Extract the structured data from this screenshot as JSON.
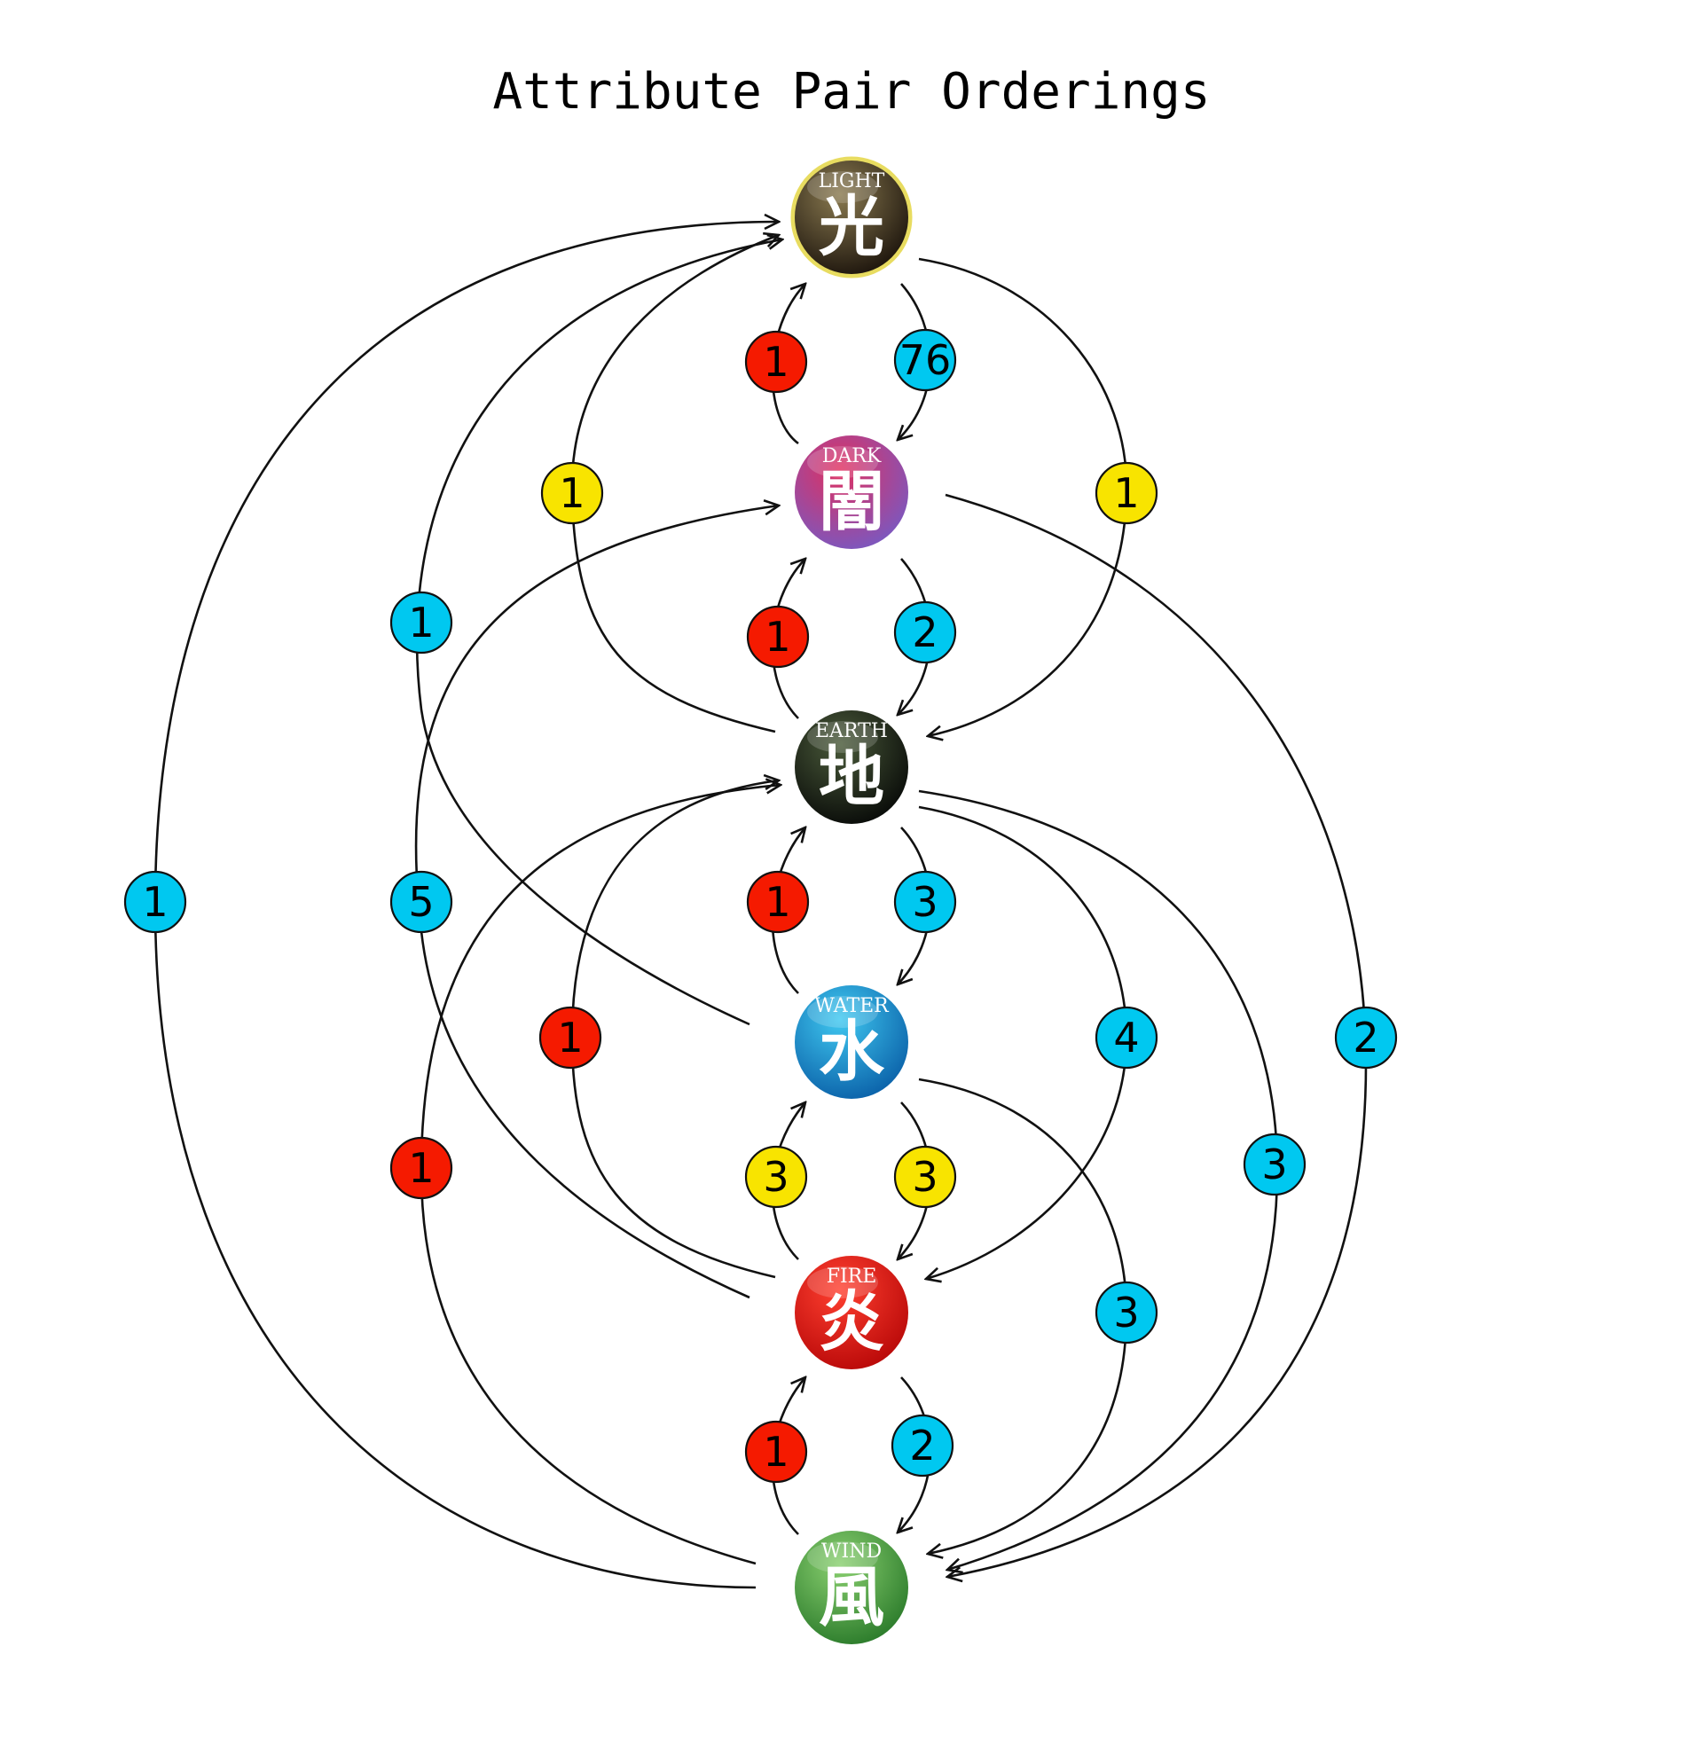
{
  "title": "Attribute Pair Orderings",
  "badge_colors": {
    "red": "#f51a00",
    "blue": "#00c8f0",
    "yellow": "#f8e400"
  },
  "nodes": [
    {
      "id": "light",
      "label": "LIGHT",
      "glyph": "光",
      "color_top": "#8a7a50",
      "color_bottom": "#1c140c",
      "ring": "#e8dc60"
    },
    {
      "id": "dark",
      "label": "DARK",
      "glyph": "闇",
      "color_top": "#e03060",
      "color_bottom": "#7a58c0",
      "ring": ""
    },
    {
      "id": "earth",
      "label": "EARTH",
      "glyph": "地",
      "color_top": "#4a5a3a",
      "color_bottom": "#080a08",
      "ring": ""
    },
    {
      "id": "water",
      "label": "WATER",
      "glyph": "水",
      "color_top": "#40c8f0",
      "color_bottom": "#0a60a8",
      "ring": ""
    },
    {
      "id": "fire",
      "label": "FIRE",
      "glyph": "炎",
      "color_top": "#ff4030",
      "color_bottom": "#b80808",
      "ring": ""
    },
    {
      "id": "wind",
      "label": "WIND",
      "glyph": "風",
      "color_top": "#8ad070",
      "color_bottom": "#2a7a2a",
      "ring": ""
    }
  ],
  "edges": [
    {
      "from": "dark",
      "to": "light",
      "count": "1",
      "color": "red"
    },
    {
      "from": "light",
      "to": "dark",
      "count": "76",
      "color": "blue"
    },
    {
      "from": "earth",
      "to": "light",
      "count": "1",
      "color": "yellow"
    },
    {
      "from": "light",
      "to": "earth",
      "count": "1",
      "color": "yellow"
    },
    {
      "from": "earth",
      "to": "dark",
      "count": "1",
      "color": "red"
    },
    {
      "from": "dark",
      "to": "earth",
      "count": "2",
      "color": "blue"
    },
    {
      "from": "water",
      "to": "light",
      "count": "1",
      "color": "blue"
    },
    {
      "from": "fire",
      "to": "dark",
      "count": "5",
      "color": "blue"
    },
    {
      "from": "wind",
      "to": "light",
      "count": "1",
      "color": "blue"
    },
    {
      "from": "dark",
      "to": "wind",
      "count": "2",
      "color": "blue"
    },
    {
      "from": "water",
      "to": "earth",
      "count": "1",
      "color": "red"
    },
    {
      "from": "earth",
      "to": "water",
      "count": "3",
      "color": "blue"
    },
    {
      "from": "fire",
      "to": "earth",
      "count": "1",
      "color": "red"
    },
    {
      "from": "earth",
      "to": "fire",
      "count": "4",
      "color": "blue"
    },
    {
      "from": "wind",
      "to": "earth",
      "count": "1",
      "color": "red"
    },
    {
      "from": "earth",
      "to": "wind",
      "count": "3",
      "color": "blue"
    },
    {
      "from": "fire",
      "to": "water",
      "count": "3",
      "color": "yellow"
    },
    {
      "from": "water",
      "to": "fire",
      "count": "3",
      "color": "yellow"
    },
    {
      "from": "water",
      "to": "wind",
      "count": "3",
      "color": "blue"
    },
    {
      "from": "wind",
      "to": "fire",
      "count": "1",
      "color": "red"
    },
    {
      "from": "fire",
      "to": "wind",
      "count": "2",
      "color": "blue"
    }
  ]
}
